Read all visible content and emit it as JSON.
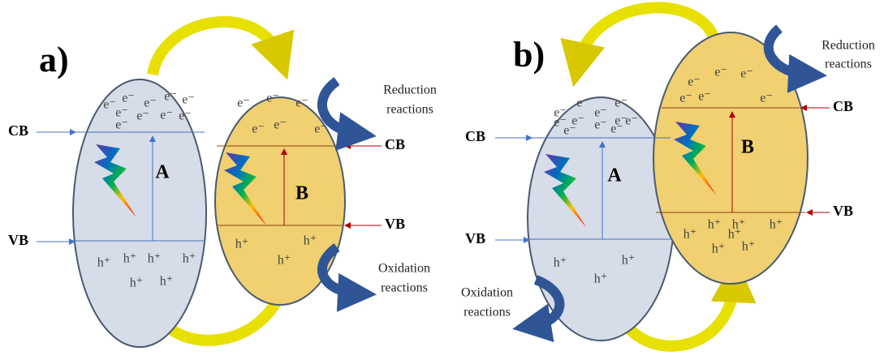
{
  "panels": [
    {
      "label": "a)",
      "semiconductor_a": {
        "name": "A",
        "electrons": [
          "e⁻",
          "e⁻",
          "e⁻",
          "e⁻",
          "e⁻",
          "e⁻",
          "e⁻",
          "e⁻",
          "e⁻",
          "e⁻"
        ],
        "holes": [
          "h⁺",
          "h⁺",
          "h⁺",
          "h⁺",
          "h⁺",
          "h⁺"
        ]
      },
      "semiconductor_b": {
        "name": "B",
        "electrons": [
          "e⁻",
          "e⁻",
          "e⁻",
          "e⁻",
          "e⁻",
          "e⁻"
        ],
        "holes": [
          "h⁺",
          "h⁺",
          "h⁺"
        ]
      },
      "band_labels": [
        "CB",
        "VB",
        "CB",
        "VB"
      ],
      "reduction": [
        "Reduction",
        "reactions"
      ],
      "oxidation": [
        "Oxidation",
        "reactions"
      ]
    },
    {
      "label": "b)",
      "semiconductor_a": {
        "name": "A",
        "electrons": [
          "e⁻",
          "e⁻",
          "e⁻",
          "e⁻",
          "e⁻",
          "e⁻",
          "e⁻",
          "e⁻",
          "e⁻",
          "e⁻",
          "e⁻"
        ],
        "holes": [
          "h⁺",
          "h⁺",
          "h⁺"
        ]
      },
      "semiconductor_b": {
        "name": "B",
        "electrons": [
          "e⁻",
          "e⁻",
          "e⁻",
          "e⁻",
          "e⁻",
          "e⁻"
        ],
        "holes": [
          "h⁺",
          "h⁺",
          "h⁺",
          "h⁺",
          "h⁺",
          "h⁺",
          "h⁺"
        ]
      },
      "band_labels": [
        "CB",
        "VB",
        "CB",
        "VB"
      ],
      "reduction": [
        "Reduction",
        "reactions"
      ],
      "oxidation": [
        "Oxidation",
        "reactions"
      ]
    }
  ]
}
